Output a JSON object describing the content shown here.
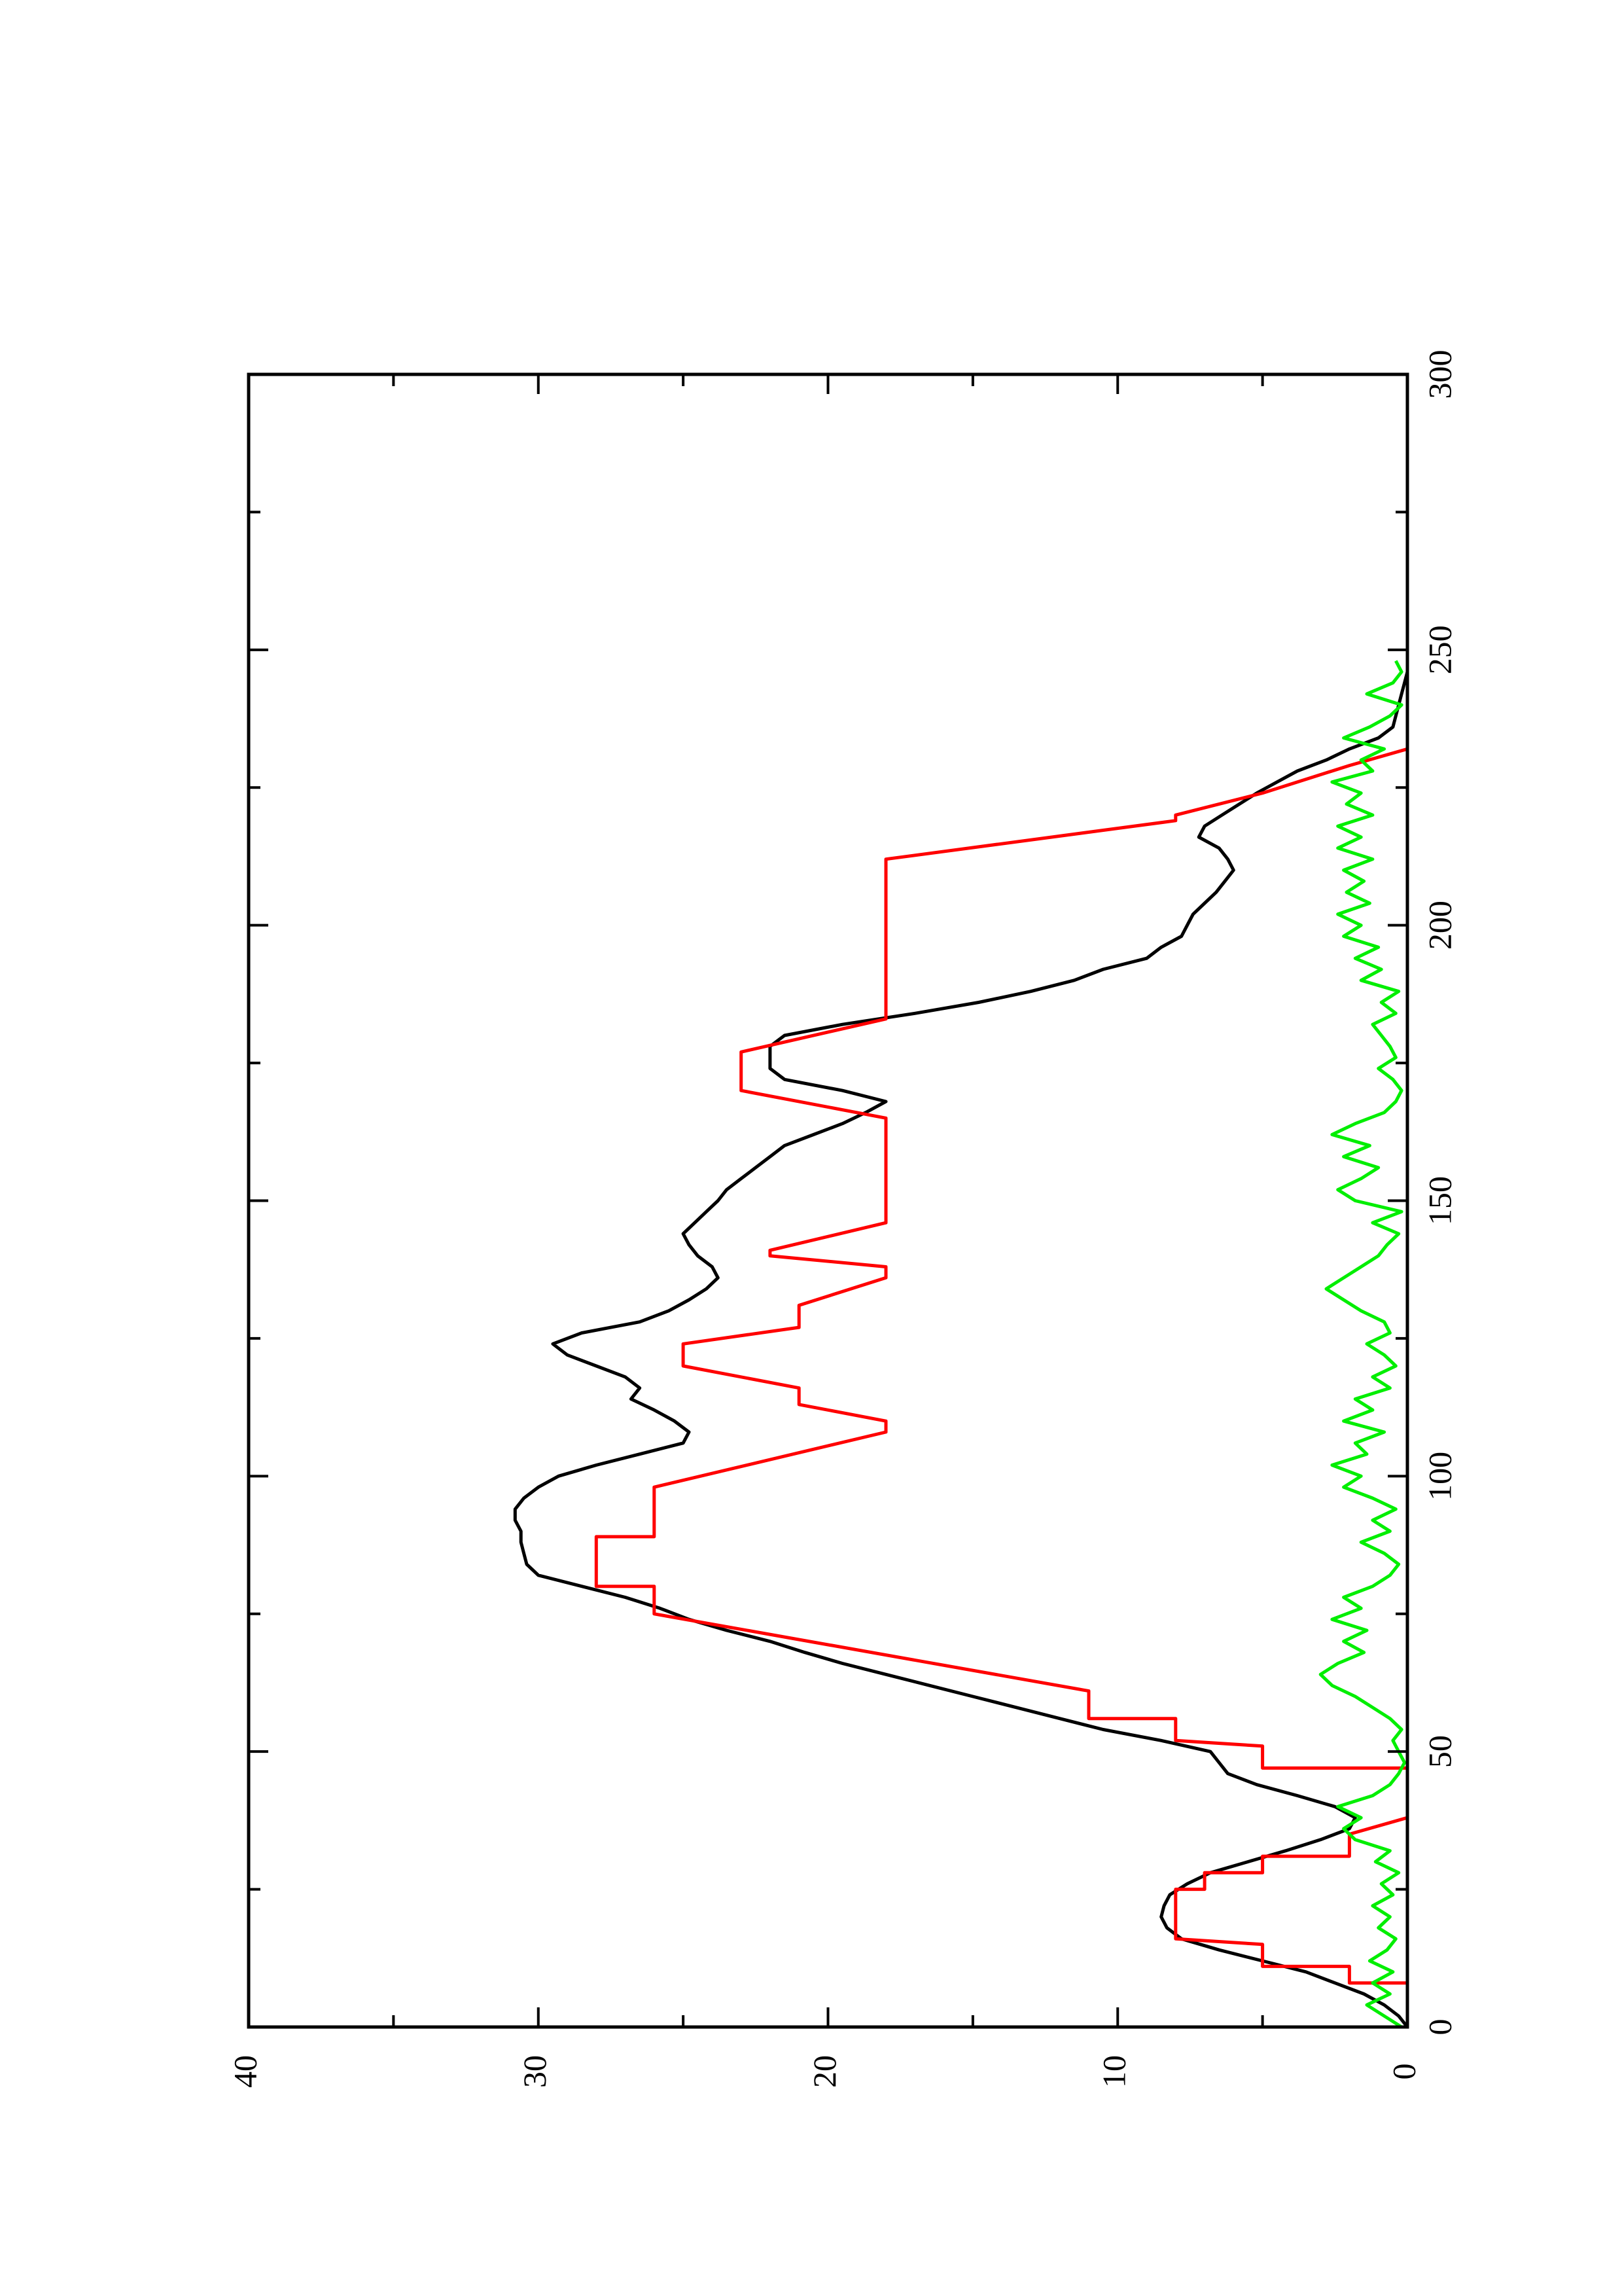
{
  "chart_data": {
    "type": "line",
    "title": "",
    "xlabel": "",
    "ylabel": "",
    "orientation": "rotated-90-ccw",
    "xlim": [
      0,
      300
    ],
    "ylim": [
      0,
      40
    ],
    "x_ticks": [
      0,
      50,
      100,
      150,
      200,
      250,
      300
    ],
    "x_tick_labels": [
      "0",
      "50",
      "100",
      "150",
      "200",
      "250",
      "300"
    ],
    "y_ticks": [
      0,
      10,
      20,
      30,
      40
    ],
    "y_tick_labels": [
      "0",
      "10",
      "20",
      "30",
      "40"
    ],
    "grid": false,
    "legend": "none",
    "series": [
      {
        "color": "#000000",
        "style": "line",
        "x": [
          0,
          2,
          4,
          6,
          8,
          10,
          12,
          14,
          16,
          18,
          20,
          22,
          24,
          26,
          28,
          30,
          32,
          34,
          36,
          38,
          40,
          42,
          44,
          46,
          48,
          50,
          52,
          54,
          56,
          58,
          60,
          62,
          64,
          66,
          68,
          70,
          72,
          74,
          76,
          78,
          80,
          82,
          84,
          86,
          88,
          90,
          92,
          94,
          96,
          98,
          100,
          102,
          104,
          106,
          108,
          110,
          112,
          114,
          116,
          118,
          120,
          122,
          124,
          126,
          128,
          130,
          132,
          134,
          136,
          138,
          140,
          142,
          144,
          146,
          148,
          150,
          152,
          154,
          156,
          158,
          160,
          162,
          164,
          166,
          168,
          170,
          172,
          174,
          176,
          178,
          180,
          182,
          184,
          186,
          188,
          190,
          192,
          194,
          196,
          198,
          200,
          202,
          204,
          206,
          208,
          210,
          212,
          214,
          216,
          218,
          220,
          222,
          224,
          226,
          228,
          230,
          232,
          234,
          236,
          238,
          240,
          242,
          244,
          246,
          248
        ],
        "y": [
          0,
          0.3,
          0.8,
          1.5,
          2.5,
          3.5,
          5,
          6.5,
          7.8,
          8.3,
          8.5,
          8.4,
          8.2,
          7.6,
          6.8,
          5.5,
          4.2,
          3,
          2,
          1.8,
          2.5,
          3.8,
          5.2,
          6.2,
          6.5,
          6.8,
          8.5,
          10.5,
          12,
          13.5,
          15,
          16.5,
          18,
          19.5,
          20.8,
          22,
          23.5,
          24.8,
          25.8,
          27,
          28.5,
          30,
          30.4,
          30.5,
          30.6,
          30.6,
          30.8,
          30.8,
          30.5,
          30,
          29.3,
          28,
          26.5,
          25,
          24.8,
          25.3,
          26,
          26.8,
          26.5,
          27,
          28,
          29,
          29.5,
          28.5,
          26.5,
          25.5,
          24.8,
          24.2,
          23.8,
          24,
          24.5,
          24.8,
          25,
          24.6,
          24.2,
          23.8,
          23.5,
          23,
          22.5,
          22,
          21.5,
          20.5,
          19.5,
          18.7,
          18,
          19.5,
          21.5,
          22,
          22,
          22,
          21.5,
          19.5,
          17,
          14.8,
          13,
          11.5,
          10.5,
          9,
          8.5,
          7.8,
          7.6,
          7.4,
          7,
          6.6,
          6.3,
          6,
          6.2,
          6.5,
          7.2,
          7,
          6.4,
          5.8,
          5.2,
          4.5,
          3.8,
          2.8,
          2,
          1,
          0.5,
          0.4,
          0.3,
          0.2,
          0.1,
          0,
          0
        ]
      },
      {
        "color": "#ff0000",
        "style": "step",
        "x": [
          0,
          7,
          8,
          8,
          11,
          11,
          15,
          16,
          16,
          24,
          25,
          25,
          28,
          28,
          31,
          31,
          35,
          38,
          42,
          42,
          47,
          47,
          51,
          52,
          56,
          56,
          61,
          61,
          75,
          75,
          80,
          80,
          82,
          82,
          89,
          89,
          98,
          98,
          108,
          108,
          110,
          113,
          116,
          116,
          120,
          120,
          124,
          127,
          131,
          131,
          136,
          136,
          138,
          140,
          141,
          146,
          146,
          165,
          165,
          170,
          170,
          177,
          177,
          183,
          183,
          212,
          212,
          219,
          219,
          220,
          220,
          224,
          224,
          229,
          229,
          232,
          234
        ],
        "y": [
          0,
          0,
          0,
          2,
          2,
          5,
          5,
          8,
          8,
          8,
          8,
          7,
          7,
          5,
          5,
          2,
          2,
          0,
          0,
          0,
          0,
          5,
          5,
          8,
          8,
          11,
          11,
          11,
          26,
          26,
          26,
          28,
          28,
          28,
          28,
          26,
          26,
          26,
          18,
          18,
          18,
          21,
          21,
          21,
          25,
          25,
          25,
          21,
          21,
          21,
          18,
          18,
          18,
          22,
          22,
          18,
          18,
          18,
          18,
          23,
          23,
          23,
          23,
          18,
          18,
          18,
          18,
          8,
          8,
          8,
          8,
          5,
          5,
          2,
          2,
          0,
          0
        ]
      },
      {
        "color": "#00ee00",
        "style": "line",
        "x": [
          0,
          2,
          4,
          6,
          8,
          10,
          12,
          14,
          16,
          18,
          20,
          22,
          24,
          26,
          28,
          30,
          32,
          34,
          36,
          38,
          40,
          42,
          44,
          46,
          48,
          50,
          52,
          54,
          56,
          58,
          60,
          62,
          64,
          66,
          68,
          70,
          72,
          74,
          76,
          78,
          80,
          82,
          84,
          86,
          88,
          90,
          92,
          94,
          96,
          98,
          100,
          102,
          104,
          106,
          108,
          110,
          112,
          114,
          116,
          118,
          120,
          122,
          124,
          126,
          128,
          130,
          132,
          134,
          136,
          138,
          140,
          142,
          144,
          146,
          148,
          150,
          152,
          154,
          156,
          158,
          160,
          162,
          164,
          166,
          168,
          170,
          172,
          174,
          176,
          178,
          180,
          182,
          184,
          186,
          188,
          190,
          192,
          194,
          196,
          198,
          200,
          202,
          204,
          206,
          208,
          210,
          212,
          214,
          216,
          218,
          220,
          222,
          224,
          226,
          228,
          230,
          232,
          234,
          236,
          238,
          240,
          242,
          244,
          246,
          248
        ],
        "y": [
          0.2,
          0.8,
          1.4,
          0.6,
          1.2,
          0.5,
          1.3,
          0.7,
          0.4,
          1,
          0.6,
          1.2,
          0.5,
          0.9,
          0.3,
          1.1,
          0.6,
          1.8,
          2.2,
          1.6,
          2.4,
          1.2,
          0.6,
          0.3,
          0.1,
          0.3,
          0.5,
          0.2,
          0.6,
          1.2,
          1.8,
          2.6,
          3,
          2.4,
          1.5,
          2.2,
          1.4,
          2.6,
          1.6,
          2.2,
          1.2,
          0.6,
          0.3,
          0.8,
          1.6,
          0.6,
          1.2,
          0.4,
          1.2,
          2.2,
          1.6,
          2.6,
          1.4,
          1.8,
          0.8,
          2.2,
          1.2,
          1.8,
          0.6,
          1.2,
          0.4,
          0.8,
          1.4,
          0.6,
          0.8,
          1.6,
          2.2,
          2.8,
          2.2,
          1.6,
          1,
          0.7,
          0.3,
          1.2,
          0.2,
          1.8,
          2.4,
          1.6,
          1,
          2.2,
          1.3,
          2.6,
          1.8,
          0.8,
          0.4,
          0.2,
          0.5,
          1,
          0.4,
          0.6,
          0.9,
          1.2,
          0.4,
          0.9,
          0.3,
          1.6,
          0.9,
          1.8,
          1,
          2.2,
          1.6,
          2.4,
          1.3,
          2.1,
          1.5,
          2.2,
          1.2,
          2.4,
          1.6,
          2.4,
          1.2,
          2.1,
          1.6,
          2.6,
          1.2,
          1.6,
          0.8,
          2.2,
          1.3,
          0.6,
          0.2,
          1.4,
          0.5,
          0.2,
          0.4
        ]
      }
    ]
  }
}
